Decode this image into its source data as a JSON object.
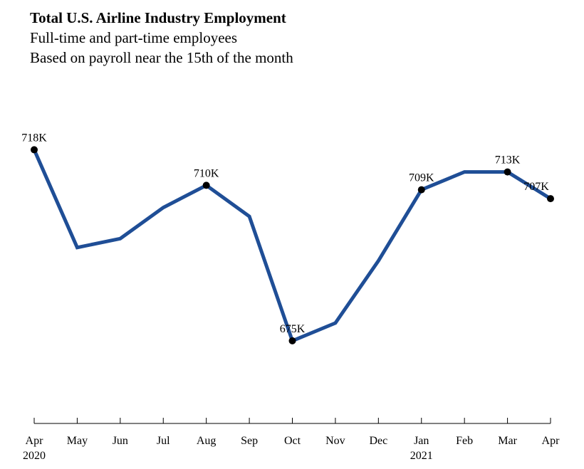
{
  "chart_data": {
    "type": "line",
    "title": "Total U.S. Airline Industry Employment",
    "subtitles": [
      "Full-time and part-time employees",
      "Based on payroll near the 15th of the month"
    ],
    "categories": [
      "Apr",
      "May",
      "Jun",
      "Jul",
      "Aug",
      "Sep",
      "Oct",
      "Nov",
      "Dec",
      "Jan",
      "Feb",
      "Mar",
      "Apr"
    ],
    "year_labels": [
      "2020",
      "",
      "",
      "",
      "",
      "",
      "",
      "",
      "",
      "2021",
      "",
      "",
      ""
    ],
    "series": [
      {
        "values": [
          718,
          696,
          698,
          705,
          710,
          703,
          675,
          679,
          693,
          709,
          713,
          713,
          707
        ]
      }
    ],
    "data_labels": [
      "718K",
      "",
      "",
      "",
      "710K",
      "",
      "675K",
      "",
      "",
      "709K",
      "",
      "713K",
      "707K"
    ],
    "unit_suffix": "K",
    "ylim": [
      654,
      728
    ],
    "grid": false,
    "legend": "none",
    "line_color": "#1f4e96",
    "marker_color": "#000000"
  }
}
